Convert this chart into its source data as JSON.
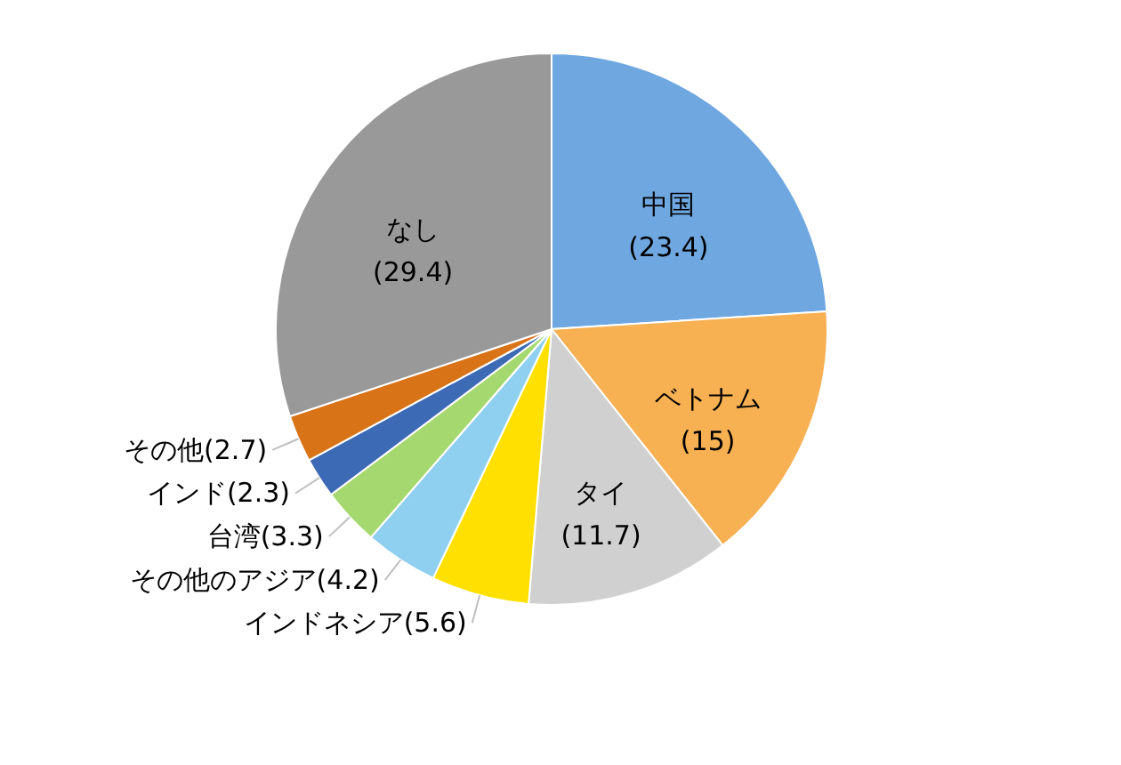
{
  "chart_data": {
    "type": "pie",
    "categories": [
      "中国",
      "ベトナム",
      "タイ",
      "インドネシア",
      "その他のアジア",
      "台湾",
      "インド",
      "その他",
      "なし"
    ],
    "values": [
      23.4,
      15,
      11.7,
      5.6,
      4.2,
      3.3,
      2.3,
      2.7,
      29.4
    ],
    "value_labels": [
      "(23.4)",
      "(15)",
      "(11.7)",
      "(5.6)",
      "(4.2)",
      "(3.3)",
      "(2.3)",
      "(2.7)",
      "(29.4)"
    ],
    "colors": [
      "#6fa8e0",
      "#f7b052",
      "#d0d0d0",
      "#ffe000",
      "#8fcfef",
      "#a5d86e",
      "#3d6ab5",
      "#d97318",
      "#999999"
    ]
  }
}
